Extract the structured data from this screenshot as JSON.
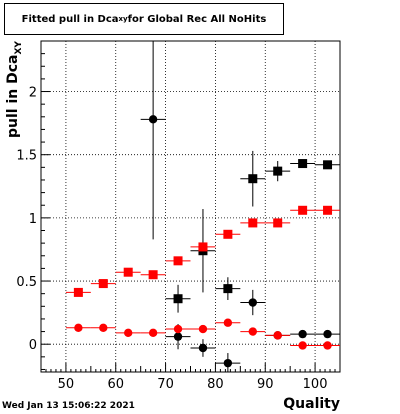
{
  "title": {
    "prefix": "Fitted pull in Dca",
    "subscript": "xy",
    "suffix": " for Global Rec All NoHits"
  },
  "axis": {
    "ylabel_main": "pull in Dca",
    "ylabel_sub": "XY",
    "xlabel": "Quality"
  },
  "timestamp": "Wed Jan 13 15:06:22 2021",
  "chart_data": {
    "type": "scatter",
    "title": "Fitted pull in Dca_xy for Global Rec All NoHits",
    "xlabel": "Quality",
    "ylabel": "pull in Dca_XY",
    "xlim": [
      45,
      105
    ],
    "ylim": [
      -0.22,
      2.4
    ],
    "x_ticks": [
      50,
      60,
      70,
      80,
      90,
      100
    ],
    "x_tick_labels": [
      "50",
      "60",
      "70",
      "80",
      "90",
      "100"
    ],
    "y_ticks": [
      0,
      0.5,
      1,
      1.5,
      2
    ],
    "y_tick_labels": [
      "0",
      "0.5",
      "1",
      "1.5",
      "2"
    ],
    "grid": true,
    "x_error": 2.5,
    "series": [
      {
        "marker": "square",
        "color": "#000000",
        "points": [
          {
            "x": 72.5,
            "y": 0.36,
            "yerr": 0.11
          },
          {
            "x": 77.5,
            "y": 0.74,
            "yerr": 0.33
          },
          {
            "x": 82.5,
            "y": 0.44,
            "yerr": 0.09
          },
          {
            "x": 87.5,
            "y": 1.31,
            "yerr": 0.22
          },
          {
            "x": 92.5,
            "y": 1.37,
            "yerr": 0.08
          },
          {
            "x": 97.5,
            "y": 1.43,
            "yerr": 0.03
          },
          {
            "x": 102.5,
            "y": 1.42,
            "yerr": 0.03
          }
        ]
      },
      {
        "marker": "circle",
        "color": "#000000",
        "points": [
          {
            "x": 67.5,
            "y": 1.78,
            "yerr": 0.95
          },
          {
            "x": 72.5,
            "y": 0.06,
            "yerr": 0.1
          },
          {
            "x": 77.5,
            "y": -0.03,
            "yerr": 0.07
          },
          {
            "x": 82.5,
            "y": -0.15,
            "yerr": 0.08
          },
          {
            "x": 87.5,
            "y": 0.33,
            "yerr": 0.1
          },
          {
            "x": 92.5,
            "y": 0.07,
            "yerr": 0.03
          },
          {
            "x": 97.5,
            "y": 0.08,
            "yerr": 0.02
          },
          {
            "x": 102.5,
            "y": 0.08,
            "yerr": 0.02
          }
        ]
      },
      {
        "marker": "square",
        "color": "#ff0000",
        "points": [
          {
            "x": 52.5,
            "y": 0.41,
            "yerr": 0.02
          },
          {
            "x": 57.5,
            "y": 0.48,
            "yerr": 0.02
          },
          {
            "x": 62.5,
            "y": 0.57,
            "yerr": 0.02
          },
          {
            "x": 67.5,
            "y": 0.55,
            "yerr": 0.02
          },
          {
            "x": 72.5,
            "y": 0.66,
            "yerr": 0.02
          },
          {
            "x": 77.5,
            "y": 0.77,
            "yerr": 0.02
          },
          {
            "x": 82.5,
            "y": 0.87,
            "yerr": 0.02
          },
          {
            "x": 87.5,
            "y": 0.96,
            "yerr": 0.02
          },
          {
            "x": 92.5,
            "y": 0.96,
            "yerr": 0.02
          },
          {
            "x": 97.5,
            "y": 1.06,
            "yerr": 0.02
          },
          {
            "x": 102.5,
            "y": 1.06,
            "yerr": 0.02
          }
        ]
      },
      {
        "marker": "circle",
        "color": "#ff0000",
        "points": [
          {
            "x": 52.5,
            "y": 0.13,
            "yerr": 0.01
          },
          {
            "x": 57.5,
            "y": 0.13,
            "yerr": 0.01
          },
          {
            "x": 62.5,
            "y": 0.09,
            "yerr": 0.01
          },
          {
            "x": 67.5,
            "y": 0.09,
            "yerr": 0.01
          },
          {
            "x": 72.5,
            "y": 0.12,
            "yerr": 0.01
          },
          {
            "x": 77.5,
            "y": 0.12,
            "yerr": 0.01
          },
          {
            "x": 82.5,
            "y": 0.17,
            "yerr": 0.01
          },
          {
            "x": 87.5,
            "y": 0.1,
            "yerr": 0.01
          },
          {
            "x": 92.5,
            "y": 0.07,
            "yerr": 0.01
          },
          {
            "x": 97.5,
            "y": -0.01,
            "yerr": 0.01
          },
          {
            "x": 102.5,
            "y": -0.01,
            "yerr": 0.01
          }
        ]
      }
    ]
  }
}
